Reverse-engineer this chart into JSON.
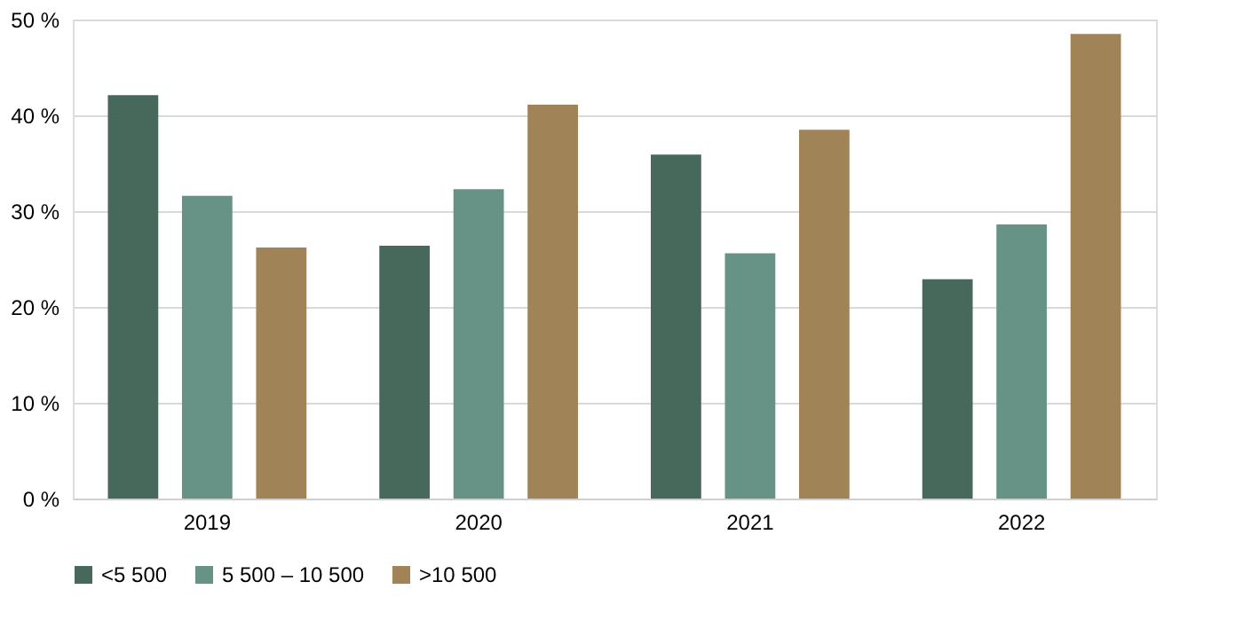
{
  "chart_data": {
    "type": "bar",
    "categories": [
      "2019",
      "2020",
      "2021",
      "2022"
    ],
    "series": [
      {
        "name": "<5 500",
        "color": "#46695c",
        "values": [
          42.1,
          26.4,
          35.9,
          22.9
        ]
      },
      {
        "name": "5 500 – 10 500",
        "color": "#669385",
        "values": [
          31.6,
          32.3,
          25.6,
          28.6
        ]
      },
      {
        "name": ">10 500",
        "color": "#a08357",
        "values": [
          26.2,
          41.1,
          38.5,
          48.5
        ]
      }
    ],
    "ylim": [
      0,
      50
    ],
    "yticks": [
      {
        "value": 0,
        "label": "0 %"
      },
      {
        "value": 10,
        "label": "10 %"
      },
      {
        "value": 20,
        "label": "20 %"
      },
      {
        "value": 30,
        "label": "30 %"
      },
      {
        "value": 40,
        "label": "40 %"
      },
      {
        "value": 50,
        "label": "50 %"
      }
    ],
    "grid": "y",
    "legend": "bottom"
  }
}
